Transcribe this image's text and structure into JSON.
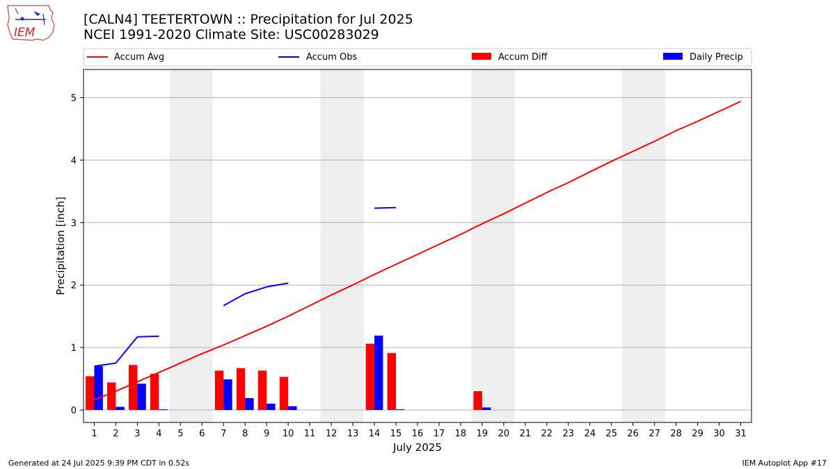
{
  "header": {
    "title_line1": "[CALN4] TEETERTOWN :: Precipitation for Jul 2025",
    "title_line2": "NCEI 1991-2020 Climate Site: USC00283029"
  },
  "logo": {
    "text": "IEM"
  },
  "footer": {
    "generated": "Generated at 24 Jul 2025 9:39 PM CDT in 0.52s",
    "app": "IEM Autoplot App #17"
  },
  "colors": {
    "accum_avg": "#ff0000",
    "accum_obs": "#0000ff",
    "accum_diff": "#ff0000",
    "daily_precip": "#0000ff",
    "weekend_shade": "#eeeeee",
    "grid": "#b0b0b0"
  },
  "chart_data": {
    "type": "bar",
    "xlabel": "July 2025",
    "ylabel": "Precipitation [inch]",
    "ylim": [
      -0.2,
      5.45
    ],
    "xlim": [
      0.5,
      31.5
    ],
    "yticks": [
      0,
      1,
      2,
      3,
      4,
      5
    ],
    "grid": "horizontal",
    "legend_position": "top",
    "days": [
      1,
      2,
      3,
      4,
      5,
      6,
      7,
      8,
      9,
      10,
      11,
      12,
      13,
      14,
      15,
      16,
      17,
      18,
      19,
      20,
      21,
      22,
      23,
      24,
      25,
      26,
      27,
      28,
      29,
      30,
      31
    ],
    "weekend_spans": [
      [
        5,
        6
      ],
      [
        12,
        13
      ],
      [
        19,
        20
      ],
      [
        26,
        27
      ]
    ],
    "series": [
      {
        "name": "Accum Avg",
        "kind": "line",
        "x": [
          1,
          2,
          3,
          4,
          5,
          6,
          7,
          8,
          9,
          10,
          11,
          12,
          13,
          14,
          15,
          16,
          17,
          18,
          19,
          20,
          21,
          22,
          23,
          24,
          25,
          26,
          27,
          28,
          29,
          30,
          31
        ],
        "values": [
          0.16,
          0.3,
          0.45,
          0.6,
          0.75,
          0.9,
          1.04,
          1.19,
          1.34,
          1.5,
          1.67,
          1.84,
          2.0,
          2.17,
          2.33,
          2.49,
          2.65,
          2.81,
          2.98,
          3.14,
          3.31,
          3.48,
          3.64,
          3.81,
          3.98,
          4.14,
          4.3,
          4.47,
          4.62,
          4.78,
          4.94
        ]
      },
      {
        "name": "Accum Obs",
        "kind": "line",
        "segments": [
          {
            "x": [
              1,
              2,
              3,
              4
            ],
            "values": [
              0.7,
              0.75,
              1.17,
              1.18
            ]
          },
          {
            "x": [
              7,
              8,
              9,
              10
            ],
            "values": [
              1.67,
              1.86,
              1.97,
              2.03
            ]
          },
          {
            "x": [
              14,
              15
            ],
            "values": [
              3.23,
              3.24
            ]
          }
        ]
      },
      {
        "name": "Accum Diff",
        "kind": "bar",
        "x": [
          1,
          2,
          3,
          4,
          7,
          8,
          9,
          10,
          14,
          15,
          19
        ],
        "values": [
          0.54,
          0.44,
          0.72,
          0.58,
          0.63,
          0.67,
          0.63,
          0.53,
          1.06,
          0.91,
          0.3
        ]
      },
      {
        "name": "Daily Precip",
        "kind": "bar",
        "x": [
          1,
          2,
          3,
          4,
          7,
          8,
          9,
          10,
          14,
          15,
          19
        ],
        "values": [
          0.7,
          0.05,
          0.42,
          0.01,
          0.49,
          0.19,
          0.1,
          0.06,
          1.19,
          0.01,
          0.04
        ]
      }
    ]
  }
}
